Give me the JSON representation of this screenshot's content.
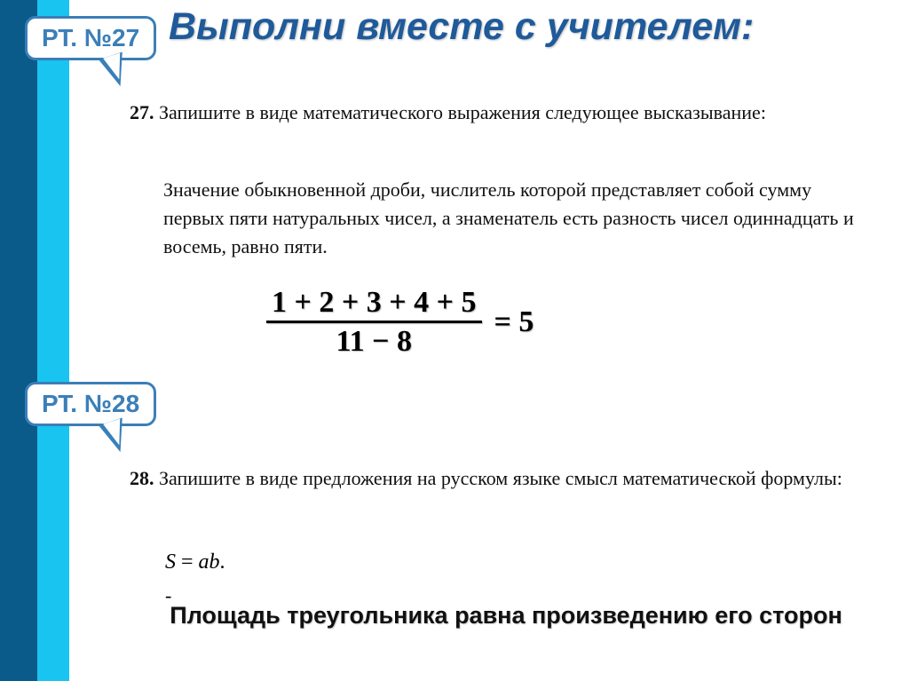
{
  "title": "Выполни вместе с учителем:",
  "callouts": {
    "c1": "РТ. №27",
    "c2": "РТ. №28"
  },
  "task27": {
    "num": "27.",
    "lead": "Запишите в виде математического выражения следующее высказывание:",
    "body": "Значение обыкновенной дроби, числитель которой представляет собой сумму первых пяти натуральных чисел, а знаменатель есть разность чисел одиннадцать и восемь, равно пяти."
  },
  "equation": {
    "numerator": "1 + 2 + 3 + 4 + 5",
    "denominator": "11 − 8",
    "rhs": "= 5"
  },
  "task28": {
    "num": "28.",
    "lead": "Запишите в виде предложения на русском языке смысл математической формулы:"
  },
  "formula": {
    "lhs": "S",
    "eq": " = ",
    "rhs": "ab",
    "dot": "."
  },
  "dash": "-",
  "answer": "Площадь треугольника равна произведению его сторон",
  "colors": {
    "stripe_dark": "#0a5a8a",
    "stripe_light": "#19c4f0",
    "title": "#1f5a9a",
    "callout_border": "#3b7fb8"
  }
}
